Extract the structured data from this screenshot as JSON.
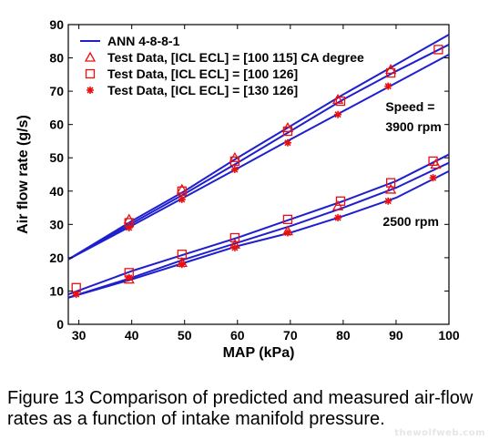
{
  "chart_data": {
    "type": "line",
    "xlabel": "MAP (kPa)",
    "ylabel": "Air flow rate (g/s)",
    "xlim": [
      28,
      100
    ],
    "ylim": [
      0,
      90
    ],
    "xticks": [
      "30",
      "40",
      "50",
      "60",
      "70",
      "80",
      "90",
      "100"
    ],
    "yticks": [
      "0",
      "10",
      "20",
      "30",
      "40",
      "50",
      "60",
      "70",
      "80",
      "90"
    ],
    "grid": false,
    "legend_position": "top-left",
    "legend": [
      {
        "label": "ANN 4-8-8-1",
        "marker": "line"
      },
      {
        "label": "Test Data, [ICL ECL] = [100 115] CA degree",
        "marker": "triangle"
      },
      {
        "label": "Test Data, [ICL ECL] = [100 126]",
        "marker": "square"
      },
      {
        "label": "Test Data, [ICL ECL] = [130 126]",
        "marker": "star"
      }
    ],
    "annotations": [
      {
        "text": "Speed =",
        "x": 88,
        "y": 64
      },
      {
        "text": "3900 rpm",
        "x": 88,
        "y": 58
      },
      {
        "text": "2500 rpm",
        "x": 87.5,
        "y": 29.5
      }
    ],
    "series": [
      {
        "marker": "line",
        "x": [
          28,
          40,
          50,
          60,
          70,
          80,
          90,
          100
        ],
        "y": [
          19.5,
          31.0,
          40.0,
          50.0,
          59.5,
          69.0,
          78.0,
          87.0
        ]
      },
      {
        "marker": "line",
        "x": [
          28,
          40,
          50,
          60,
          70,
          80,
          90,
          100
        ],
        "y": [
          19.5,
          30.3,
          39.2,
          48.5,
          58.0,
          67.5,
          76.0,
          84.0
        ]
      },
      {
        "marker": "line",
        "x": [
          28,
          40,
          50,
          60,
          70,
          80,
          90,
          100
        ],
        "y": [
          19.5,
          29.6,
          38.2,
          46.8,
          55.5,
          64.0,
          72.5,
          81.0
        ]
      },
      {
        "marker": "line",
        "x": [
          28,
          40,
          50,
          60,
          70,
          80,
          90,
          100
        ],
        "y": [
          9.0,
          16.0,
          21.0,
          26.0,
          31.5,
          37.0,
          43.0,
          51.0
        ]
      },
      {
        "marker": "line",
        "x": [
          28,
          40,
          50,
          60,
          70,
          80,
          90,
          100
        ],
        "y": [
          8.0,
          14.0,
          19.5,
          24.5,
          29.5,
          35.0,
          41.0,
          48.5
        ]
      },
      {
        "marker": "line",
        "x": [
          28,
          40,
          50,
          60,
          70,
          80,
          90,
          100
        ],
        "y": [
          8.0,
          13.5,
          18.5,
          23.5,
          27.5,
          32.5,
          38.0,
          46.0
        ]
      },
      {
        "marker": "triangle",
        "x": [
          39.5,
          49.5,
          59.5,
          69.5,
          79,
          89,
          39.5,
          49.5,
          59.5,
          69.5,
          79,
          89,
          97.5
        ],
        "y": [
          31.5,
          40.5,
          50,
          59,
          67.5,
          76.5,
          13.5,
          18.5,
          24,
          28,
          35.5,
          40.5,
          48
        ]
      },
      {
        "marker": "square",
        "x": [
          29.5,
          39.5,
          49.5,
          59.5,
          69.5,
          79.5,
          89,
          97,
          39.5,
          49.5,
          59.5,
          69.5,
          79.5,
          89,
          98
        ],
        "y": [
          11,
          15.5,
          21,
          26,
          31.5,
          37,
          42.5,
          49,
          30.5,
          40,
          49,
          58,
          67,
          75.5,
          82.5
        ]
      },
      {
        "marker": "star",
        "x": [
          29.5,
          39.5,
          49.5,
          59.5,
          69.5,
          79,
          88.5,
          97,
          39.5,
          49.5,
          59.5,
          69.5,
          79,
          88.5
        ],
        "y": [
          9,
          14,
          18,
          23,
          27.5,
          32,
          37,
          44,
          29,
          37.5,
          46.5,
          54.5,
          63,
          71.5
        ]
      }
    ]
  },
  "caption": "Figure 13 Comparison of predicted and measured air-flow rates as a function of intake manifold pressure.",
  "watermark": "thewolfweb.com",
  "colors": {
    "series": "#1f1fd0",
    "markers": "#e81010",
    "axis": "#000000"
  }
}
